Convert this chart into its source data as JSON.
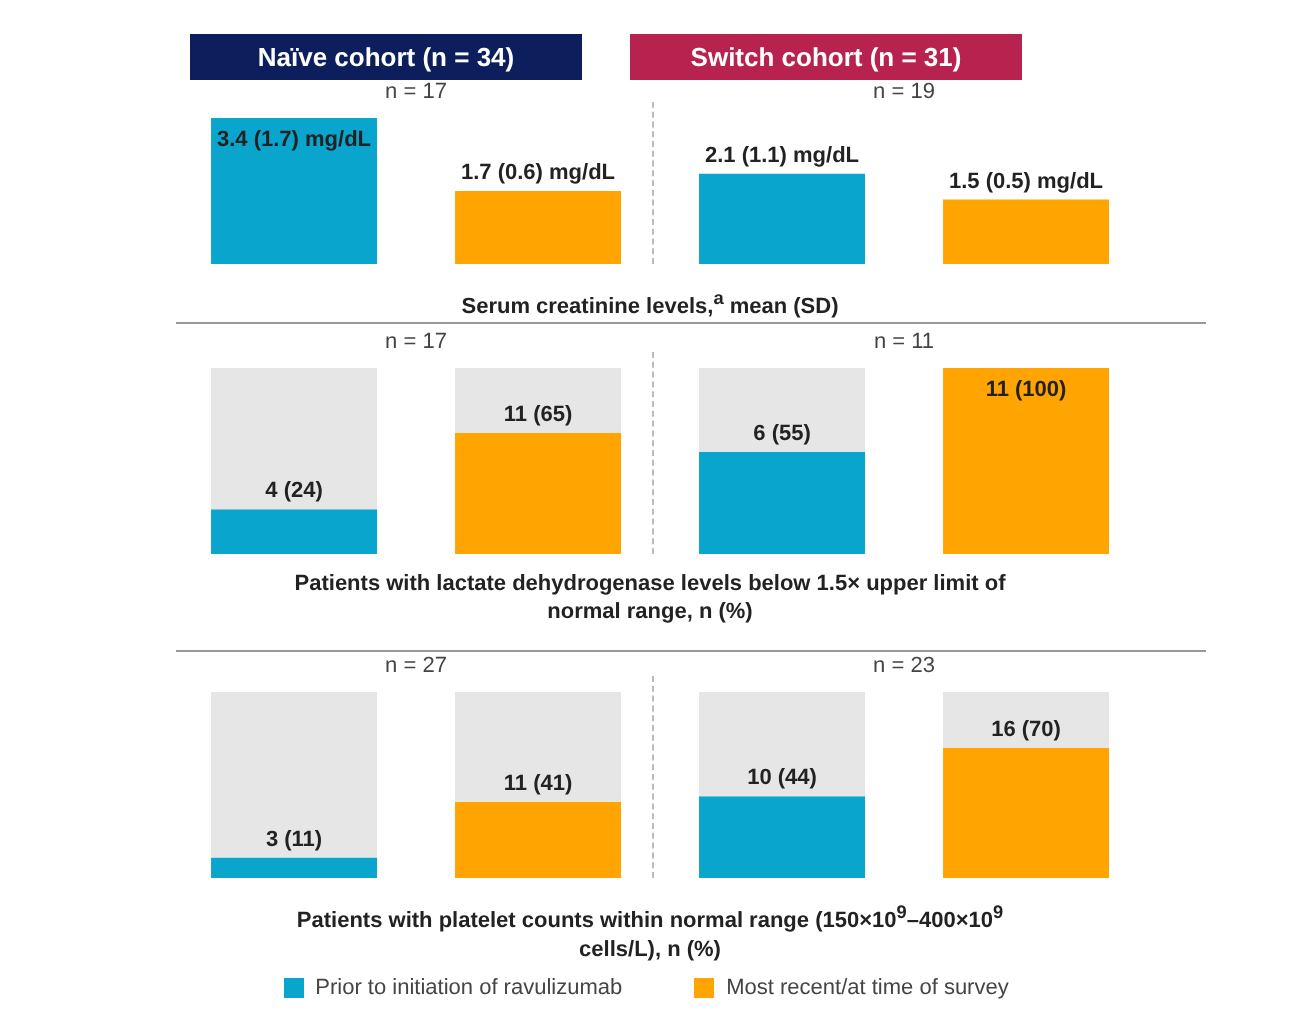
{
  "chart_data": [
    {
      "type": "bar",
      "stacked": true,
      "title": "Serum creatinine levels,$^{a}$ mean (SD)",
      "annotations": [
        "Naïve cohort (n = 34)",
        "Switch cohort (n = 31)",
        "n = 17",
        "n = 19"
      ],
      "categories": [
        null,
        null,
        null,
        null
      ],
      "tick_labels": false,
      "grid": false,
      "legend": false,
      "series": [
        {
          "color": "#0aa5cc",
          "values": [
            3.4,
            null,
            2.1,
            null
          ],
          "value_labels": [
            "3.4 (1.7) mg/dL",
            null,
            "2.1 (1.1) mg/dL",
            null
          ]
        },
        {
          "color": "#ffa400",
          "values": [
            null,
            1.7,
            null,
            1.5
          ],
          "value_labels": [
            null,
            "1.7 (0.6) mg/dL",
            null,
            "1.5 (0.5) mg/dL"
          ]
        }
      ]
    },
    {
      "type": "bar",
      "stacked": true,
      "title": "Patients with lactate dehydrogenase levels below 1.5× upper limit of normal range, n (%)",
      "annotations": [
        "n = 17",
        "n = 11"
      ],
      "categories": [
        null,
        null,
        null,
        null
      ],
      "ylim": [
        0,
        100
      ],
      "tick_labels": false,
      "grid": false,
      "legend": false,
      "series": [
        {
          "color": "#0aa5cc",
          "values": [
            24,
            null,
            55,
            null
          ],
          "value_labels": [
            "4 (24)",
            null,
            "6 (55)",
            null
          ]
        },
        {
          "color": "#ffa400",
          "values": [
            null,
            65,
            null,
            100
          ],
          "value_labels": [
            null,
            "11 (65)",
            null,
            "11 (100)"
          ]
        },
        {
          "color": "#e6e6e6",
          "values": [
            76,
            35,
            45,
            0
          ]
        }
      ]
    },
    {
      "type": "bar",
      "stacked": true,
      "title": "Patients with platelet counts within normal range (150×10$^{9}$–400×10$^{9}$ cells/L), n (%)",
      "annotations": [
        "n = 27",
        "n = 23"
      ],
      "categories": [
        null,
        null,
        null,
        null
      ],
      "ylim": [
        0,
        100
      ],
      "tick_labels": false,
      "grid": false,
      "legend": "bottom",
      "series": [
        {
          "name": "Prior to initiation of ravulizumab",
          "color": "#0aa5cc",
          "values": [
            11,
            null,
            44,
            null
          ],
          "value_labels": [
            "3 (11)",
            null,
            "10 (44)",
            null
          ]
        },
        {
          "name": "Most recent/at time of survey",
          "color": "#ffa400",
          "values": [
            null,
            41,
            null,
            70
          ],
          "value_labels": [
            null,
            "11 (41)",
            null,
            "16 (70)"
          ]
        },
        {
          "color": "#e6e6e6",
          "values": [
            89,
            59,
            56,
            30
          ]
        }
      ]
    }
  ]
}
